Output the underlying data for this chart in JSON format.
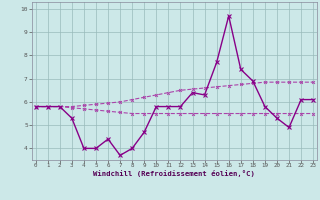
{
  "xlabel": "Windchill (Refroidissement éolien,°C)",
  "x": [
    0,
    1,
    2,
    3,
    4,
    5,
    6,
    7,
    8,
    9,
    10,
    11,
    12,
    13,
    14,
    15,
    16,
    17,
    18,
    19,
    20,
    21,
    22,
    23
  ],
  "y_main": [
    5.8,
    5.8,
    5.8,
    5.3,
    4.0,
    4.0,
    4.4,
    3.7,
    4.0,
    4.7,
    5.8,
    5.8,
    5.8,
    6.4,
    6.3,
    7.7,
    9.7,
    7.4,
    6.9,
    5.8,
    5.3,
    4.9,
    6.1,
    6.1
  ],
  "y_upper": [
    5.8,
    5.8,
    5.8,
    5.8,
    5.85,
    5.9,
    5.95,
    6.0,
    6.1,
    6.2,
    6.3,
    6.4,
    6.5,
    6.55,
    6.6,
    6.65,
    6.7,
    6.75,
    6.8,
    6.85,
    6.85,
    6.85,
    6.85,
    6.85
  ],
  "y_lower": [
    5.8,
    5.8,
    5.8,
    5.75,
    5.7,
    5.65,
    5.6,
    5.55,
    5.5,
    5.5,
    5.5,
    5.5,
    5.5,
    5.5,
    5.5,
    5.5,
    5.5,
    5.5,
    5.5,
    5.5,
    5.5,
    5.5,
    5.5,
    5.5
  ],
  "color_main": "#880088",
  "color_upper": "#aa44aa",
  "color_lower": "#aa44aa",
  "bg_color": "#cce8e8",
  "grid_color": "#99bbbb",
  "ylim": [
    3.5,
    10.3
  ],
  "yticks": [
    4,
    5,
    6,
    7,
    8,
    9,
    10
  ],
  "xlim": [
    -0.3,
    23.3
  ],
  "xticks": [
    0,
    1,
    2,
    3,
    4,
    5,
    6,
    7,
    8,
    9,
    10,
    11,
    12,
    13,
    14,
    15,
    16,
    17,
    18,
    19,
    20,
    21,
    22,
    23
  ],
  "marker_size_main": 2.5,
  "marker_size_band": 2.0,
  "lw_main": 1.0,
  "lw_band": 0.8
}
